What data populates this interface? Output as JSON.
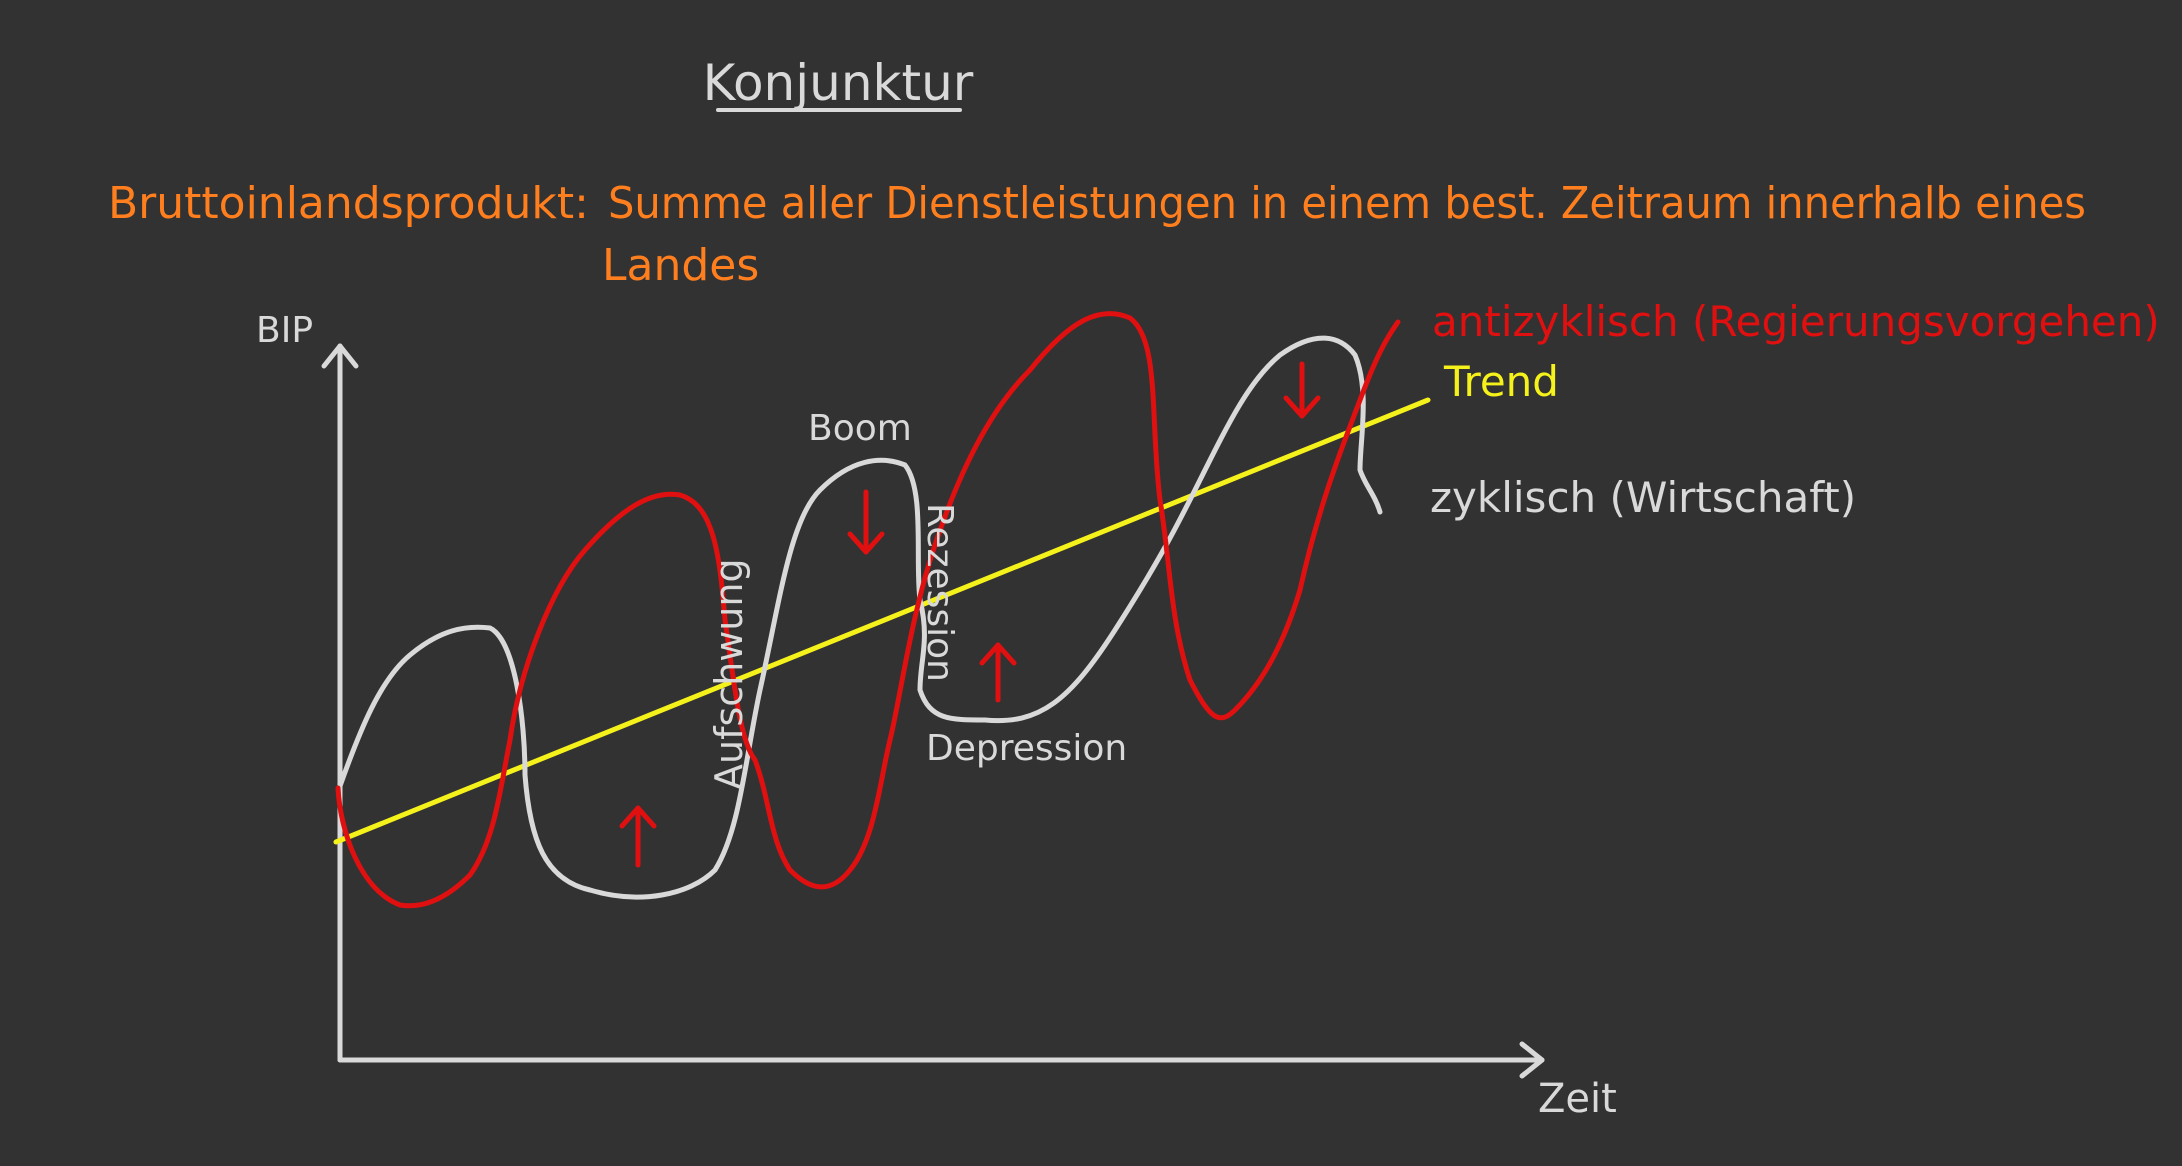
{
  "title": "Konjunktur",
  "definition": {
    "term": "Bruttoinlandsprodukt:",
    "line1": "Summe aller Dienstleistungen in einem best. Zeitraum innerhalb eines",
    "line2": "Landes"
  },
  "axes": {
    "y_label": "BIP",
    "x_label": "Zeit"
  },
  "phases": {
    "boom": "Boom",
    "upswing": "Aufschwung",
    "recession": "Rezession",
    "depression": "Depression"
  },
  "legend": {
    "anticyclic": "antizyklisch (Regierungsvorgehen)",
    "trend": "Trend",
    "cyclic": "zyklisch (Wirtschaft)"
  },
  "colors": {
    "background": "#323232",
    "chalk": "#d9d9d9",
    "orange": "#ff7f1f",
    "red": "#e01010",
    "yellow": "#f5f11a"
  }
}
